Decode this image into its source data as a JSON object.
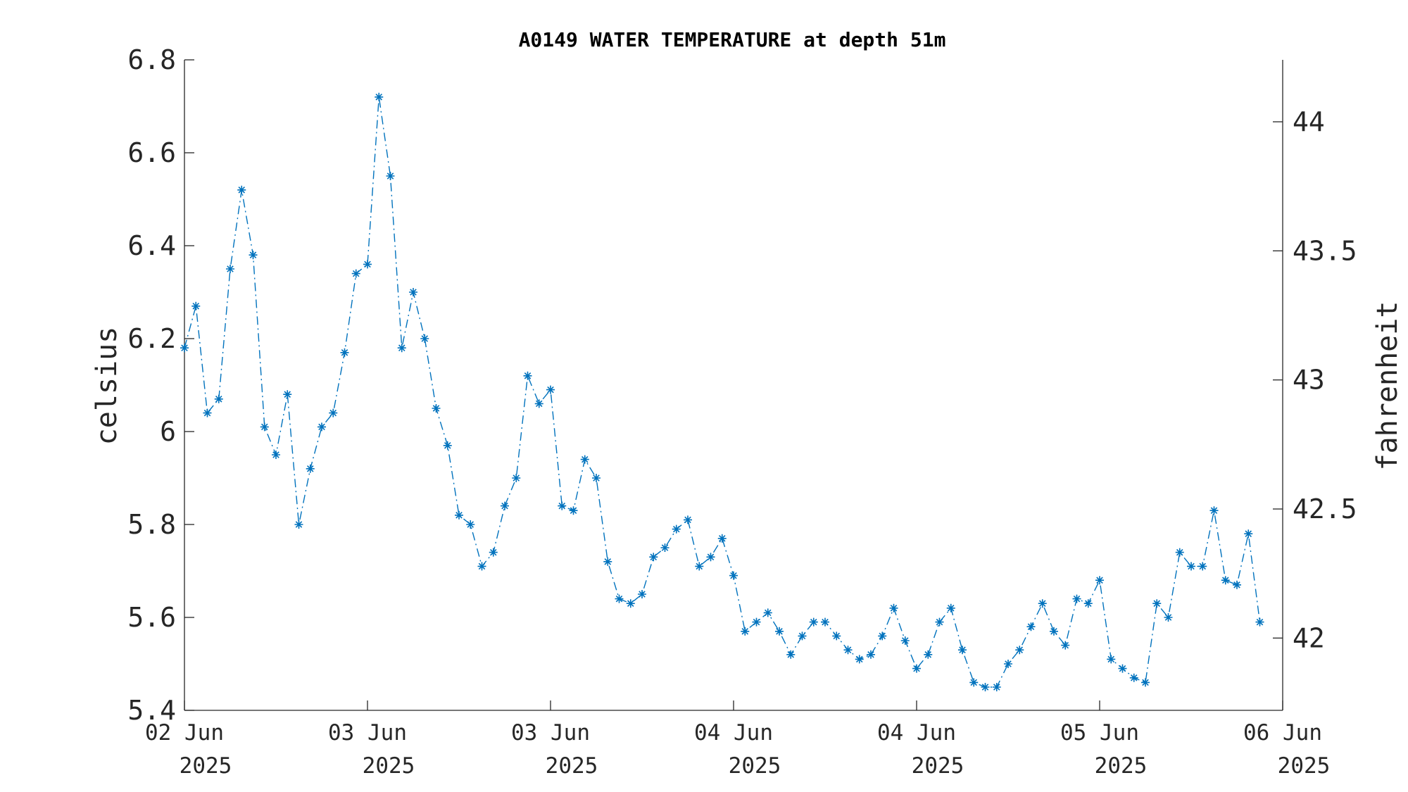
{
  "chart_data": {
    "type": "line",
    "title": "A0149 WATER TEMPERATURE at depth 51m",
    "ylabel": "celsius",
    "ylabel_right": "fahrenheit",
    "xlabel": "",
    "ylim": [
      5.4,
      6.8
    ],
    "yticks": [
      5.4,
      5.6,
      5.8,
      6.0,
      6.2,
      6.4,
      6.6,
      6.8
    ],
    "ytick_labels": [
      "5.4",
      "5.6",
      "5.8",
      "6",
      "6.2",
      "6.4",
      "6.6",
      "6.8"
    ],
    "yticks_right": [
      42,
      42.5,
      43,
      43.5,
      44
    ],
    "ytick_labels_right": [
      "42",
      "42.5",
      "43",
      "43.5",
      "44"
    ],
    "x_range_hours": [
      0,
      96
    ],
    "xtick_hours": [
      0,
      16,
      32,
      48,
      64,
      80,
      96
    ],
    "xtick_labels": [
      [
        "02 Jun",
        "2025"
      ],
      [
        "03 Jun",
        "2025"
      ],
      [
        "03 Jun",
        "2025"
      ],
      [
        "04 Jun",
        "2025"
      ],
      [
        "04 Jun",
        "2025"
      ],
      [
        "05 Jun",
        "2025"
      ],
      [
        "06 Jun",
        "2025"
      ]
    ],
    "color": "#0072BD",
    "line_style": "dash-dot",
    "marker": "asterisk",
    "grid": false,
    "series": [
      {
        "values": [
          6.18,
          6.27,
          6.04,
          6.07,
          6.35,
          6.52,
          6.38,
          6.01,
          5.95,
          6.08,
          5.8,
          5.92,
          6.01,
          6.04,
          6.17,
          6.34,
          6.36,
          6.72,
          6.55,
          6.18,
          6.3,
          6.2,
          6.05,
          5.97,
          5.82,
          5.8,
          5.71,
          5.74,
          5.84,
          5.9,
          6.12,
          6.06,
          6.09,
          5.84,
          5.83,
          5.94,
          5.9,
          5.72,
          5.64,
          5.63,
          5.65,
          5.73,
          5.75,
          5.79,
          5.81,
          5.71,
          5.73,
          5.77,
          5.69,
          5.57,
          5.59,
          5.61,
          5.57,
          5.52,
          5.56,
          5.59,
          5.59,
          5.56,
          5.53,
          5.51,
          5.52,
          5.56,
          5.62,
          5.55,
          5.49,
          5.52,
          5.59,
          5.62,
          5.53,
          5.46,
          5.45,
          5.45,
          5.5,
          5.53,
          5.58,
          5.63,
          5.57,
          5.54,
          5.64,
          5.63,
          5.68,
          5.51,
          5.49,
          5.47,
          5.46,
          5.63,
          5.6,
          5.74,
          5.71,
          5.71,
          5.83,
          5.68,
          5.67,
          5.78,
          5.59
        ]
      }
    ]
  }
}
